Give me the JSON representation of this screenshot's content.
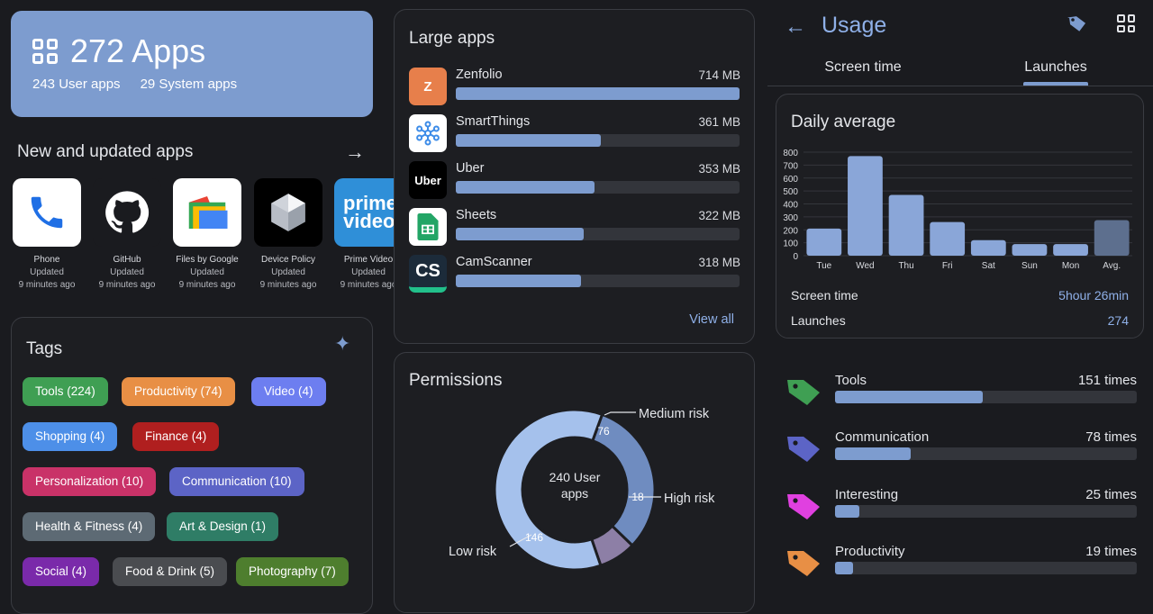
{
  "apps_summary": {
    "title": "272 Apps",
    "user_apps": "243 User apps",
    "system_apps": "29 System apps"
  },
  "new_updated": {
    "title": "New and updated apps",
    "apps": [
      {
        "name": "Phone",
        "status": "Updated",
        "time": "9 minutes ago",
        "icon": "phone-icon"
      },
      {
        "name": "GitHub",
        "status": "Updated",
        "time": "9 minutes ago",
        "icon": "github-icon"
      },
      {
        "name": "Files by Google",
        "status": "Updated",
        "time": "9 minutes ago",
        "icon": "files-icon"
      },
      {
        "name": "Device Policy",
        "status": "Updated",
        "time": "9 minutes ago",
        "icon": "device-policy-icon"
      },
      {
        "name": "Prime Video",
        "status": "Updated",
        "time": "9 minutes ago",
        "icon": "prime-video-icon",
        "icon_text": "prime video"
      }
    ]
  },
  "tags": {
    "title": "Tags",
    "items": [
      {
        "label": "Tools (224)",
        "color": "#3f9f53"
      },
      {
        "label": "Productivity (74)",
        "color": "#e88f45"
      },
      {
        "label": "Video (4)",
        "color": "#6d7ef0"
      },
      {
        "label": "Shopping (4)",
        "color": "#4d8fe8"
      },
      {
        "label": "Finance (4)",
        "color": "#b01f1f"
      },
      {
        "label": "Personalization (10)",
        "color": "#c93268"
      },
      {
        "label": "Communication (10)",
        "color": "#5c64c6"
      },
      {
        "label": "Health & Fitness (4)",
        "color": "#5d6a74"
      },
      {
        "label": "Art & Design (1)",
        "color": "#2f7d66"
      },
      {
        "label": "Social (4)",
        "color": "#7a2aaa"
      },
      {
        "label": "Food & Drink (5)",
        "color": "#4a4c50"
      },
      {
        "label": "Photography (7)",
        "color": "#4e7e2e"
      }
    ]
  },
  "large_apps": {
    "title": "Large apps",
    "view_all": "View all",
    "items": [
      {
        "name": "Zenfolio",
        "size": "714 MB",
        "fraction": 1.0,
        "icon": "zenfolio-icon",
        "icon_text": "Z"
      },
      {
        "name": "SmartThings",
        "size": "361 MB",
        "fraction": 0.51,
        "icon": "smartthings-icon"
      },
      {
        "name": "Uber",
        "size": "353 MB",
        "fraction": 0.49,
        "icon": "uber-icon",
        "icon_text": "Uber"
      },
      {
        "name": "Sheets",
        "size": "322 MB",
        "fraction": 0.45,
        "icon": "sheets-icon"
      },
      {
        "name": "CamScanner",
        "size": "318 MB",
        "fraction": 0.44,
        "icon": "camscanner-icon",
        "icon_text": "CS"
      }
    ]
  },
  "permissions": {
    "title": "Permissions",
    "center": [
      "240 User",
      "apps"
    ],
    "segments": [
      {
        "label": "Medium risk",
        "value": 76,
        "color": "#6f8cc0"
      },
      {
        "label": "High risk",
        "value": 18,
        "color": "#8d7fa6"
      },
      {
        "label": "Low risk",
        "value": 146,
        "color": "#a5c1ec"
      }
    ]
  },
  "usage": {
    "title": "Usage",
    "tabs": [
      {
        "label": "Screen time"
      },
      {
        "label": "Launches"
      }
    ],
    "active_tab": 1,
    "daily_title": "Daily average",
    "screen_time_label": "Screen time",
    "screen_time_value": "5hour 26min",
    "launches_label": "Launches",
    "launches_value": "274",
    "categories": [
      {
        "name": "Tools",
        "times": "151 times",
        "fraction": 0.49,
        "color": "#3f9f53"
      },
      {
        "name": "Communication",
        "times": "78 times",
        "fraction": 0.25,
        "color": "#5c64c6"
      },
      {
        "name": "Interesting",
        "times": "25 times",
        "fraction": 0.08,
        "color": "#e040e0"
      },
      {
        "name": "Productivity",
        "times": "19 times",
        "fraction": 0.06,
        "color": "#e88f45"
      }
    ]
  },
  "chart_data": {
    "type": "bar",
    "categories": [
      "Tue",
      "Wed",
      "Thu",
      "Fri",
      "Sat",
      "Sun",
      "Mon",
      "Avg."
    ],
    "values": [
      210,
      770,
      470,
      260,
      120,
      90,
      90,
      275
    ],
    "ylim": [
      0,
      800
    ],
    "yticks": [
      0,
      100,
      200,
      300,
      400,
      500,
      600,
      700,
      800
    ],
    "grid": true,
    "bar_color": "#8aa6d8",
    "avg_color": "#5d6f8e"
  }
}
